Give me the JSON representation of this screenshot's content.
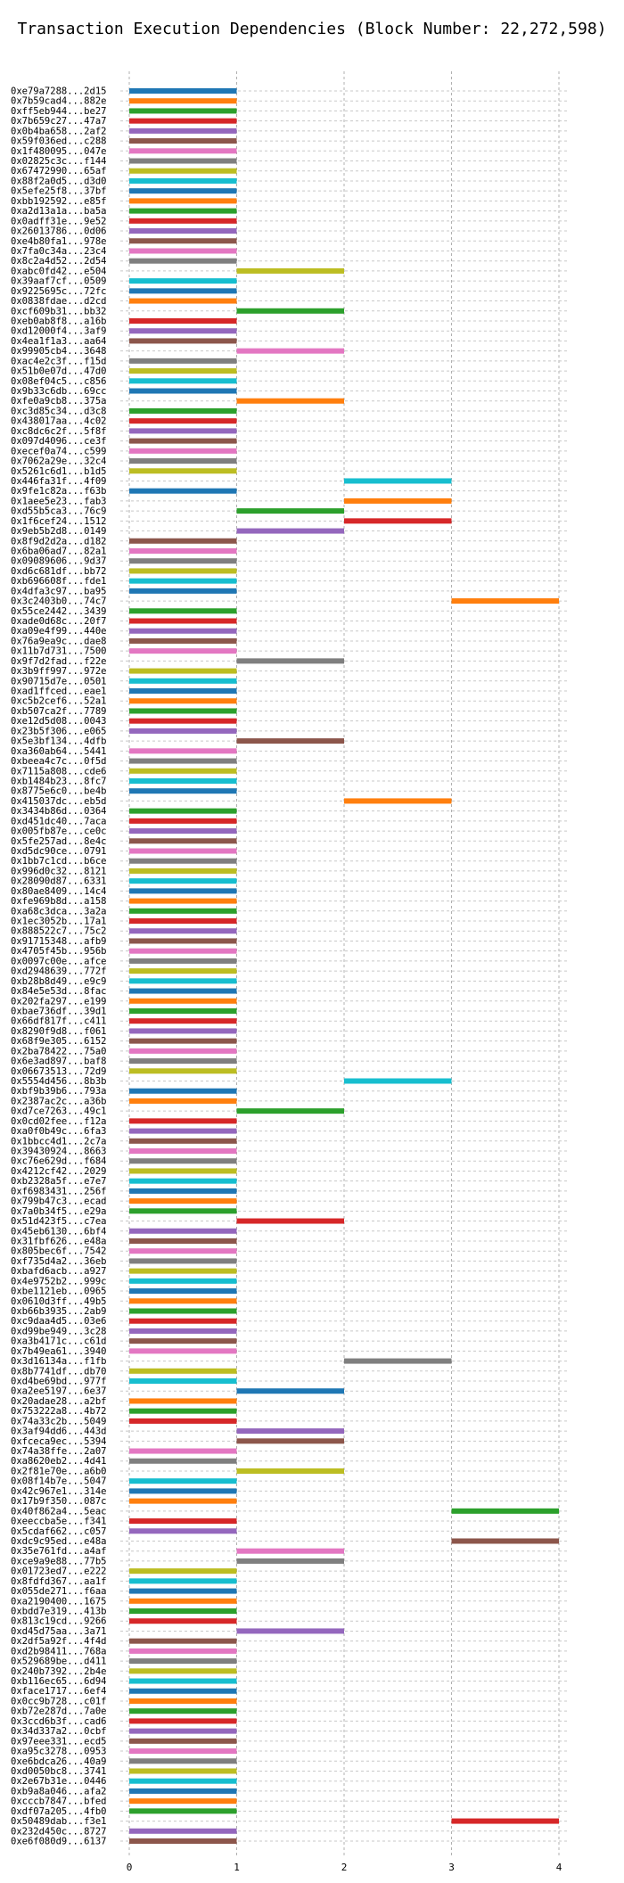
{
  "chart_data": {
    "type": "bar",
    "orientation": "horizontal-gantt",
    "title": "Transaction Execution Dependencies (Block Number: 22,272,598)",
    "xlim": [
      0,
      4
    ],
    "xticks": [
      0,
      1,
      2,
      3,
      4
    ],
    "grid": true,
    "palette": [
      "#1f77b4",
      "#ff7f0e",
      "#2ca02c",
      "#d62728",
      "#9467bd",
      "#8c564b",
      "#e377c2",
      "#7f7f7f",
      "#bcbd22",
      "#17becf"
    ],
    "transactions": [
      {
        "label": "0xe79a7288...2d15",
        "start": 0,
        "end": 1
      },
      {
        "label": "0x7b59cad4...882e",
        "start": 0,
        "end": 1
      },
      {
        "label": "0xff5eb944...be27",
        "start": 0,
        "end": 1
      },
      {
        "label": "0x7b659c27...47a7",
        "start": 0,
        "end": 1
      },
      {
        "label": "0x0b4ba658...2af2",
        "start": 0,
        "end": 1
      },
      {
        "label": "0x59f036ed...c288",
        "start": 0,
        "end": 1
      },
      {
        "label": "0x1f480095...047e",
        "start": 0,
        "end": 1
      },
      {
        "label": "0x02825c3c...f144",
        "start": 0,
        "end": 1
      },
      {
        "label": "0x67472990...65af",
        "start": 0,
        "end": 1
      },
      {
        "label": "0x88f2a0d5...d3d0",
        "start": 0,
        "end": 1
      },
      {
        "label": "0x5efe25f8...37bf",
        "start": 0,
        "end": 1
      },
      {
        "label": "0xbb192592...e85f",
        "start": 0,
        "end": 1
      },
      {
        "label": "0xa2d13a1a...ba5a",
        "start": 0,
        "end": 1
      },
      {
        "label": "0x0adff31e...9e52",
        "start": 0,
        "end": 1
      },
      {
        "label": "0x26013786...0d06",
        "start": 0,
        "end": 1
      },
      {
        "label": "0xe4b80fa1...978e",
        "start": 0,
        "end": 1
      },
      {
        "label": "0x7fa0c34a...23c4",
        "start": 0,
        "end": 1
      },
      {
        "label": "0x8c2a4d52...2d54",
        "start": 0,
        "end": 1
      },
      {
        "label": "0xabc0fd42...e504",
        "start": 1,
        "end": 2
      },
      {
        "label": "0x39aaf7cf...0509",
        "start": 0,
        "end": 1
      },
      {
        "label": "0x9225695c...72fc",
        "start": 0,
        "end": 1
      },
      {
        "label": "0x0838fdae...d2cd",
        "start": 0,
        "end": 1
      },
      {
        "label": "0xcf609b31...bb32",
        "start": 1,
        "end": 2
      },
      {
        "label": "0xeb0ab8f8...a16b",
        "start": 0,
        "end": 1
      },
      {
        "label": "0xd12000f4...3af9",
        "start": 0,
        "end": 1
      },
      {
        "label": "0x4ea1f1a3...aa64",
        "start": 0,
        "end": 1
      },
      {
        "label": "0x99905cb4...3648",
        "start": 1,
        "end": 2
      },
      {
        "label": "0xac4e2c3f...f15d",
        "start": 0,
        "end": 1
      },
      {
        "label": "0x51b0e07d...47d0",
        "start": 0,
        "end": 1
      },
      {
        "label": "0x08ef04c5...c856",
        "start": 0,
        "end": 1
      },
      {
        "label": "0x9b33c6db...69cc",
        "start": 0,
        "end": 1
      },
      {
        "label": "0xfe0a9cb8...375a",
        "start": 1,
        "end": 2
      },
      {
        "label": "0xc3d85c34...d3c8",
        "start": 0,
        "end": 1
      },
      {
        "label": "0x438017aa...4c02",
        "start": 0,
        "end": 1
      },
      {
        "label": "0xc8dc6c2f...5f8f",
        "start": 0,
        "end": 1
      },
      {
        "label": "0x097d4096...ce3f",
        "start": 0,
        "end": 1
      },
      {
        "label": "0xecef0a74...c599",
        "start": 0,
        "end": 1
      },
      {
        "label": "0x7062a29e...32c4",
        "start": 0,
        "end": 1
      },
      {
        "label": "0x5261c6d1...b1d5",
        "start": 0,
        "end": 1
      },
      {
        "label": "0x446fa31f...4f09",
        "start": 2,
        "end": 3
      },
      {
        "label": "0x9fe1c82a...f63b",
        "start": 0,
        "end": 1
      },
      {
        "label": "0x1aee5e23...fab3",
        "start": 2,
        "end": 3
      },
      {
        "label": "0xd55b5ca3...76c9",
        "start": 1,
        "end": 2
      },
      {
        "label": "0x1f6cef24...1512",
        "start": 2,
        "end": 3
      },
      {
        "label": "0x9eb5b2d8...0149",
        "start": 1,
        "end": 2
      },
      {
        "label": "0x8f9d2d2a...d182",
        "start": 0,
        "end": 1
      },
      {
        "label": "0x6ba06ad7...82a1",
        "start": 0,
        "end": 1
      },
      {
        "label": "0x09089606...9d37",
        "start": 0,
        "end": 1
      },
      {
        "label": "0xd6c681df...bb72",
        "start": 0,
        "end": 1
      },
      {
        "label": "0xb696608f...fde1",
        "start": 0,
        "end": 1
      },
      {
        "label": "0x4dfa3c97...ba95",
        "start": 0,
        "end": 1
      },
      {
        "label": "0x3c2403b0...74c7",
        "start": 3,
        "end": 4
      },
      {
        "label": "0x55ce2442...3439",
        "start": 0,
        "end": 1
      },
      {
        "label": "0xade0d68c...20f7",
        "start": 0,
        "end": 1
      },
      {
        "label": "0xa09e4f99...440e",
        "start": 0,
        "end": 1
      },
      {
        "label": "0x76a9ea9c...dae8",
        "start": 0,
        "end": 1
      },
      {
        "label": "0x11b7d731...7500",
        "start": 0,
        "end": 1
      },
      {
        "label": "0x9f7d2fad...f22e",
        "start": 1,
        "end": 2
      },
      {
        "label": "0x3b9ff997...972e",
        "start": 0,
        "end": 1
      },
      {
        "label": "0x90715d7e...0501",
        "start": 0,
        "end": 1
      },
      {
        "label": "0xad1ffced...eae1",
        "start": 0,
        "end": 1
      },
      {
        "label": "0xc5b2cef6...52a1",
        "start": 0,
        "end": 1
      },
      {
        "label": "0xb507ca2f...7789",
        "start": 0,
        "end": 1
      },
      {
        "label": "0xe12d5d08...0043",
        "start": 0,
        "end": 1
      },
      {
        "label": "0x23b5f306...e065",
        "start": 0,
        "end": 1
      },
      {
        "label": "0x5e3bf134...4dfb",
        "start": 1,
        "end": 2
      },
      {
        "label": "0xa360ab64...5441",
        "start": 0,
        "end": 1
      },
      {
        "label": "0xbeea4c7c...0f5d",
        "start": 0,
        "end": 1
      },
      {
        "label": "0x7115a808...cde6",
        "start": 0,
        "end": 1
      },
      {
        "label": "0xb1484b23...8fc7",
        "start": 0,
        "end": 1
      },
      {
        "label": "0x8775e6c0...be4b",
        "start": 0,
        "end": 1
      },
      {
        "label": "0x415037dc...eb5d",
        "start": 2,
        "end": 3
      },
      {
        "label": "0x3434b86d...0364",
        "start": 0,
        "end": 1
      },
      {
        "label": "0xd451dc40...7aca",
        "start": 0,
        "end": 1
      },
      {
        "label": "0x005fb87e...ce0c",
        "start": 0,
        "end": 1
      },
      {
        "label": "0x5fe257ad...8e4c",
        "start": 0,
        "end": 1
      },
      {
        "label": "0xd5dc90ce...0791",
        "start": 0,
        "end": 1
      },
      {
        "label": "0x1bb7c1cd...b6ce",
        "start": 0,
        "end": 1
      },
      {
        "label": "0x996d0c32...8121",
        "start": 0,
        "end": 1
      },
      {
        "label": "0x28090d87...6331",
        "start": 0,
        "end": 1
      },
      {
        "label": "0x80ae8409...14c4",
        "start": 0,
        "end": 1
      },
      {
        "label": "0xfe969b8d...a158",
        "start": 0,
        "end": 1
      },
      {
        "label": "0xa68c3dca...3a2a",
        "start": 0,
        "end": 1
      },
      {
        "label": "0x1ec3052b...17a1",
        "start": 0,
        "end": 1
      },
      {
        "label": "0x888522c7...75c2",
        "start": 0,
        "end": 1
      },
      {
        "label": "0x91715348...afb9",
        "start": 0,
        "end": 1
      },
      {
        "label": "0x4705f45b...956b",
        "start": 0,
        "end": 1
      },
      {
        "label": "0x0097c00e...afce",
        "start": 0,
        "end": 1
      },
      {
        "label": "0xd2948639...772f",
        "start": 0,
        "end": 1
      },
      {
        "label": "0xb28b8d49...e9c9",
        "start": 0,
        "end": 1
      },
      {
        "label": "0x84e5e53d...8fac",
        "start": 0,
        "end": 1
      },
      {
        "label": "0x202fa297...e199",
        "start": 0,
        "end": 1
      },
      {
        "label": "0xbae736df...39d1",
        "start": 0,
        "end": 1
      },
      {
        "label": "0x66df817f...c411",
        "start": 0,
        "end": 1
      },
      {
        "label": "0x8290f9d8...f061",
        "start": 0,
        "end": 1
      },
      {
        "label": "0x68f9e305...6152",
        "start": 0,
        "end": 1
      },
      {
        "label": "0x2ba78422...75a0",
        "start": 0,
        "end": 1
      },
      {
        "label": "0x6e3ad897...baf8",
        "start": 0,
        "end": 1
      },
      {
        "label": "0x06673513...72d9",
        "start": 0,
        "end": 1
      },
      {
        "label": "0x5554d456...8b3b",
        "start": 2,
        "end": 3
      },
      {
        "label": "0xbf9b39b6...793a",
        "start": 0,
        "end": 1
      },
      {
        "label": "0x2387ac2c...a36b",
        "start": 0,
        "end": 1
      },
      {
        "label": "0xd7ce7263...49c1",
        "start": 1,
        "end": 2
      },
      {
        "label": "0x0cd02fee...f12a",
        "start": 0,
        "end": 1
      },
      {
        "label": "0xa0f0b49c...6fa3",
        "start": 0,
        "end": 1
      },
      {
        "label": "0x1bbcc4d1...2c7a",
        "start": 0,
        "end": 1
      },
      {
        "label": "0x39430924...8663",
        "start": 0,
        "end": 1
      },
      {
        "label": "0xc76e629d...f684",
        "start": 0,
        "end": 1
      },
      {
        "label": "0x4212cf42...2029",
        "start": 0,
        "end": 1
      },
      {
        "label": "0xb2328a5f...e7e7",
        "start": 0,
        "end": 1
      },
      {
        "label": "0xf6983431...256f",
        "start": 0,
        "end": 1
      },
      {
        "label": "0x799b47c3...ecad",
        "start": 0,
        "end": 1
      },
      {
        "label": "0x7a0b34f5...e29a",
        "start": 0,
        "end": 1
      },
      {
        "label": "0x51d423f5...c7ea",
        "start": 1,
        "end": 2
      },
      {
        "label": "0x45eb6130...6bf4",
        "start": 0,
        "end": 1
      },
      {
        "label": "0x31fbf626...e48a",
        "start": 0,
        "end": 1
      },
      {
        "label": "0x805bec6f...7542",
        "start": 0,
        "end": 1
      },
      {
        "label": "0xf735d4a2...36eb",
        "start": 0,
        "end": 1
      },
      {
        "label": "0xbafd6acb...a927",
        "start": 0,
        "end": 1
      },
      {
        "label": "0x4e9752b2...999c",
        "start": 0,
        "end": 1
      },
      {
        "label": "0xbe1121eb...0965",
        "start": 0,
        "end": 1
      },
      {
        "label": "0x0610d3ff...49b5",
        "start": 0,
        "end": 1
      },
      {
        "label": "0xb66b3935...2ab9",
        "start": 0,
        "end": 1
      },
      {
        "label": "0xc9daa4d5...03e6",
        "start": 0,
        "end": 1
      },
      {
        "label": "0xd99be949...3c28",
        "start": 0,
        "end": 1
      },
      {
        "label": "0xa3b4171c...c61d",
        "start": 0,
        "end": 1
      },
      {
        "label": "0x7b49ea61...3940",
        "start": 0,
        "end": 1
      },
      {
        "label": "0x3d16134a...f1fb",
        "start": 2,
        "end": 3
      },
      {
        "label": "0x8b7741df...db70",
        "start": 0,
        "end": 1
      },
      {
        "label": "0xd4be69bd...977f",
        "start": 0,
        "end": 1
      },
      {
        "label": "0xa2ee5197...6e37",
        "start": 1,
        "end": 2
      },
      {
        "label": "0x20adae28...a2bf",
        "start": 0,
        "end": 1
      },
      {
        "label": "0x753222a8...4b72",
        "start": 0,
        "end": 1
      },
      {
        "label": "0x74a33c2b...5049",
        "start": 0,
        "end": 1
      },
      {
        "label": "0x3af94dd6...443d",
        "start": 1,
        "end": 2
      },
      {
        "label": "0xfceca9ec...5394",
        "start": 1,
        "end": 2
      },
      {
        "label": "0x74a38ffe...2a07",
        "start": 0,
        "end": 1
      },
      {
        "label": "0xa8620eb2...4d41",
        "start": 0,
        "end": 1
      },
      {
        "label": "0x2f81e70e...a6b0",
        "start": 1,
        "end": 2
      },
      {
        "label": "0x08f14b7e...5047",
        "start": 0,
        "end": 1
      },
      {
        "label": "0x42c967e1...314e",
        "start": 0,
        "end": 1
      },
      {
        "label": "0x17b9f350...087c",
        "start": 0,
        "end": 1
      },
      {
        "label": "0x40f862a4...5eac",
        "start": 3,
        "end": 4
      },
      {
        "label": "0xeeccba5e...f341",
        "start": 0,
        "end": 1
      },
      {
        "label": "0x5cdaf662...c057",
        "start": 0,
        "end": 1
      },
      {
        "label": "0xdc9c95ed...e48a",
        "start": 3,
        "end": 4
      },
      {
        "label": "0x35e761fd...a4af",
        "start": 1,
        "end": 2
      },
      {
        "label": "0xce9a9e88...77b5",
        "start": 1,
        "end": 2
      },
      {
        "label": "0x01723ed7...e222",
        "start": 0,
        "end": 1
      },
      {
        "label": "0x8fdfd367...aa1f",
        "start": 0,
        "end": 1
      },
      {
        "label": "0x055de271...f6aa",
        "start": 0,
        "end": 1
      },
      {
        "label": "0xa2190400...1675",
        "start": 0,
        "end": 1
      },
      {
        "label": "0xbdd7e319...413b",
        "start": 0,
        "end": 1
      },
      {
        "label": "0x813c19cd...9266",
        "start": 0,
        "end": 1
      },
      {
        "label": "0xd45d75aa...3a71",
        "start": 1,
        "end": 2
      },
      {
        "label": "0x2df5a92f...4f4d",
        "start": 0,
        "end": 1
      },
      {
        "label": "0xd2b98411...768a",
        "start": 0,
        "end": 1
      },
      {
        "label": "0x529689be...d411",
        "start": 0,
        "end": 1
      },
      {
        "label": "0x240b7392...2b4e",
        "start": 0,
        "end": 1
      },
      {
        "label": "0xb116ec65...6d94",
        "start": 0,
        "end": 1
      },
      {
        "label": "0xface1717...6ef4",
        "start": 0,
        "end": 1
      },
      {
        "label": "0x0cc9b728...c01f",
        "start": 0,
        "end": 1
      },
      {
        "label": "0xb72e287d...7a0e",
        "start": 0,
        "end": 1
      },
      {
        "label": "0x3ccd6b3f...cad6",
        "start": 0,
        "end": 1
      },
      {
        "label": "0x34d337a2...0cbf",
        "start": 0,
        "end": 1
      },
      {
        "label": "0x97eee331...ecd5",
        "start": 0,
        "end": 1
      },
      {
        "label": "0xa95c3278...0953",
        "start": 0,
        "end": 1
      },
      {
        "label": "0xe6bdca26...40a9",
        "start": 0,
        "end": 1
      },
      {
        "label": "0xd0050bc8...3741",
        "start": 0,
        "end": 1
      },
      {
        "label": "0x2e67b31e...0446",
        "start": 0,
        "end": 1
      },
      {
        "label": "0xb9a8a046...afa2",
        "start": 0,
        "end": 1
      },
      {
        "label": "0xcccb7847...bfed",
        "start": 0,
        "end": 1
      },
      {
        "label": "0xdf07a205...4fb0",
        "start": 0,
        "end": 1
      },
      {
        "label": "0x50489dab...f3e1",
        "start": 3,
        "end": 4
      },
      {
        "label": "0x232d450c...8727",
        "start": 0,
        "end": 1
      },
      {
        "label": "0xe6f080d9...6137",
        "start": 0,
        "end": 1
      }
    ]
  }
}
